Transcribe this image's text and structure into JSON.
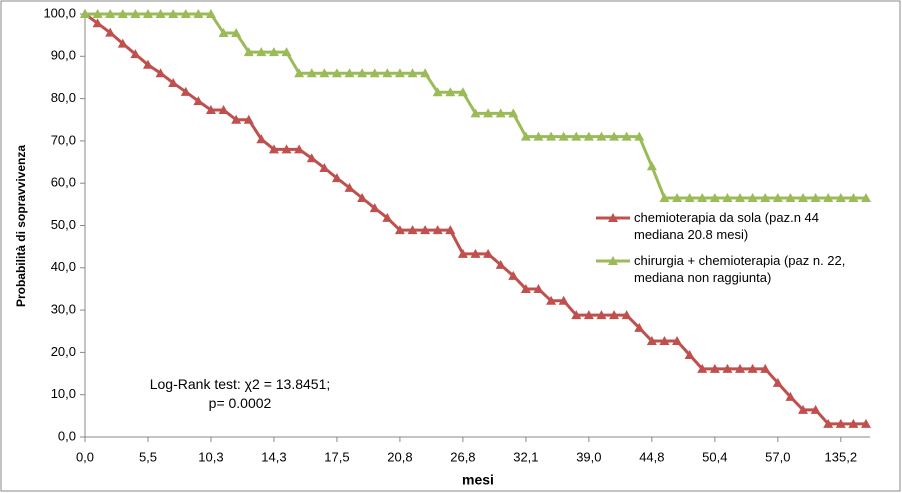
{
  "chart_data": {
    "type": "line",
    "y_label": "Probabilità di sopravvivenza",
    "x_label": "mesi",
    "annotation": [
      "Log-Rank test: χ2 = 13.8451;",
      "p= 0.0002"
    ],
    "categories": [
      "0,0",
      null,
      null,
      null,
      null,
      "5,5",
      null,
      null,
      null,
      null,
      "10,3",
      null,
      null,
      null,
      null,
      "14,3",
      null,
      null,
      null,
      null,
      "17,5",
      null,
      null,
      null,
      null,
      "20,8",
      null,
      null,
      null,
      null,
      "26,8",
      null,
      null,
      null,
      null,
      "32,1",
      null,
      null,
      null,
      null,
      "39,0",
      null,
      null,
      null,
      null,
      "44,8",
      null,
      null,
      null,
      null,
      "50,4",
      null,
      null,
      null,
      null,
      "57,0",
      null,
      null,
      null,
      null,
      "135,2",
      null,
      null
    ],
    "series": [
      {
        "name": "chemioterapia da sola (paz.n 44 mediana 20.8 mesi)",
        "color": "#c0504d",
        "values": [
          100,
          97.8,
          95.6,
          93,
          90.5,
          88,
          86,
          83.7,
          81.6,
          79.4,
          77.3,
          77.3,
          75,
          75,
          70.4,
          68,
          68,
          68,
          65.9,
          63.6,
          61.2,
          58.9,
          56.5,
          54.1,
          51.8,
          48.9,
          48.9,
          48.9,
          48.9,
          48.9,
          43.3,
          43.3,
          43.3,
          40.7,
          38.1,
          35,
          35,
          32.2,
          32.2,
          28.8,
          28.8,
          28.8,
          28.8,
          28.8,
          25.8,
          22.7,
          22.7,
          22.7,
          19.4,
          16.1,
          16.1,
          16.1,
          16.1,
          16.1,
          16.1,
          12.8,
          9.5,
          6.4,
          6.4,
          3.1,
          3.1,
          3.1,
          3.1
        ]
      },
      {
        "name": "chirurgia + chemioterapia (paz n. 22, mediana non raggiunta)",
        "color": "#9bbb59",
        "values": [
          100,
          100,
          100,
          100,
          100,
          100,
          100,
          100,
          100,
          100,
          100,
          95.5,
          95.5,
          91,
          91,
          91,
          91,
          86,
          86,
          86,
          86,
          86,
          86,
          86,
          86,
          86,
          86,
          86,
          81.5,
          81.5,
          81.5,
          76.5,
          76.5,
          76.5,
          76.5,
          71,
          71,
          71,
          71,
          71,
          71,
          71,
          71,
          71,
          71,
          64,
          56.5,
          56.5,
          56.5,
          56.5,
          56.5,
          56.5,
          56.5,
          56.5,
          56.5,
          56.5,
          56.5,
          56.5,
          56.5,
          56.5,
          56.5,
          56.5,
          56.5
        ]
      }
    ],
    "ylim": [
      0,
      100
    ],
    "yticks": [
      {
        "value": 0,
        "label": "0,0"
      },
      {
        "value": 10,
        "label": "10,0"
      },
      {
        "value": 20,
        "label": "20,0"
      },
      {
        "value": 30,
        "label": "30,0"
      },
      {
        "value": 40,
        "label": "40,0"
      },
      {
        "value": 50,
        "label": "50,0"
      },
      {
        "value": 60,
        "label": "60,0"
      },
      {
        "value": 70,
        "label": "70,0"
      },
      {
        "value": 80,
        "label": "80,0"
      },
      {
        "value": 90,
        "label": "90,0"
      },
      {
        "value": 100,
        "label": "100,0"
      }
    ],
    "grid": false
  }
}
